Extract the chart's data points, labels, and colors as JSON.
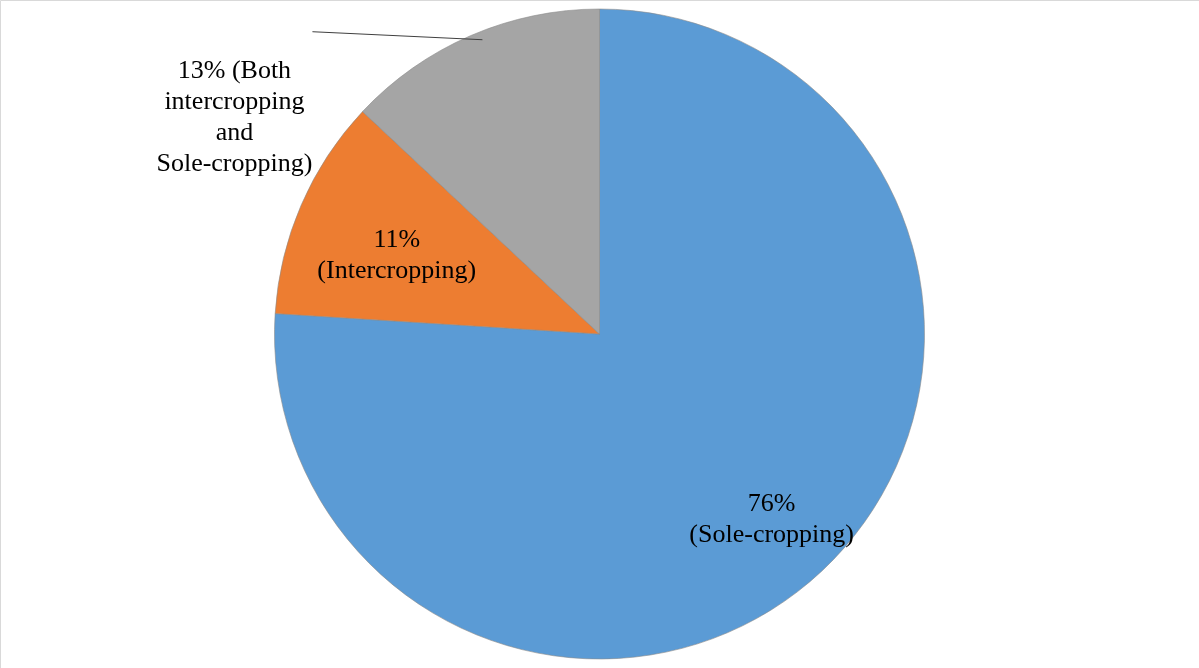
{
  "chart_data": {
    "type": "pie",
    "categories": [
      "76% (Sole-cropping)",
      "11% (Intercropping)",
      "13% (Both intercropping and Sole-cropping)"
    ],
    "values": [
      76,
      11,
      13
    ],
    "colors": [
      "#5b9bd5",
      "#ed7d31",
      "#a5a5a5"
    ]
  }
}
